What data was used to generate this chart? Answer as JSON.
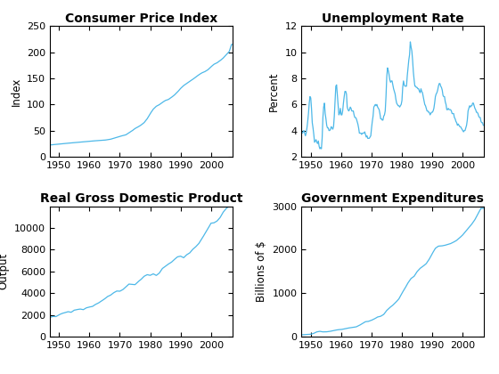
{
  "title_cpi": "Consumer Price Index",
  "title_unemp": "Unemployment Rate",
  "title_gdp": "Real Gross Domestic Product",
  "title_gov": "Government Expenditures",
  "ylabel_cpi": "Index",
  "ylabel_unemp": "Percent",
  "ylabel_gdp": "Output",
  "ylabel_gov": "Billions of $",
  "line_color": "#4db8e8",
  "bg_color": "#ffffff",
  "ylim_cpi": [
    0,
    250
  ],
  "ylim_unemp": [
    2,
    12
  ],
  "ylim_gdp": [
    0,
    12000
  ],
  "ylim_gov": [
    0,
    3000
  ],
  "yticks_cpi": [
    0,
    50,
    100,
    150,
    200,
    250
  ],
  "yticks_unemp": [
    2,
    4,
    6,
    8,
    10,
    12
  ],
  "yticks_gdp": [
    0,
    2000,
    4000,
    6000,
    8000,
    10000
  ],
  "yticks_gov": [
    0,
    1000,
    2000,
    3000
  ],
  "xticks": [
    1950,
    1960,
    1970,
    1980,
    1990,
    2000
  ],
  "xlim": [
    1947,
    2007
  ],
  "title_fontsize": 10,
  "label_fontsize": 8.5,
  "tick_fontsize": 8
}
